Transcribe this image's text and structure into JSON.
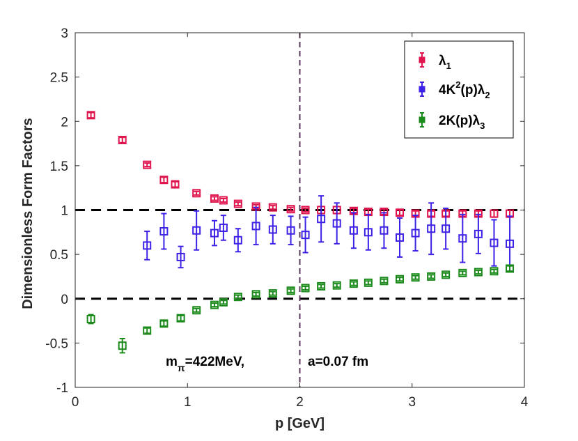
{
  "chart_data": {
    "type": "scatter",
    "xlabel": "p [GeV]",
    "ylabel": "Dimensionless Form Factors",
    "xlim": [
      0,
      4
    ],
    "ylim": [
      -1,
      3
    ],
    "x_ticks": [
      0,
      1,
      2,
      3,
      4
    ],
    "x_tick_labels": [
      "0",
      "1",
      "2",
      "3",
      "4"
    ],
    "y_ticks": [
      -1,
      -0.5,
      0,
      0.5,
      1,
      1.5,
      2,
      2.5,
      3
    ],
    "y_tick_labels": [
      "-1",
      "-0.5",
      "0",
      "0.5",
      "1",
      "1.5",
      "2",
      "2.5",
      "3"
    ],
    "grid": false,
    "legend_position": "top-right",
    "reference_lines": [
      {
        "orientation": "horizontal",
        "value": 1,
        "style": "dashed",
        "color": "#000000"
      },
      {
        "orientation": "horizontal",
        "value": 0,
        "style": "dashed",
        "color": "#000000"
      },
      {
        "orientation": "vertical",
        "value": 2,
        "style": "dashed",
        "color": "#5a3a5a"
      }
    ],
    "annotations": [
      {
        "text_main": "m",
        "text_sub": "π",
        "text_rest": "=422MeV,"
      },
      {
        "text_main": "a=0.07 fm"
      }
    ],
    "series": [
      {
        "name": "lambda1",
        "legend": {
          "main": "λ",
          "sub": "1",
          "rest": ""
        },
        "color": "#e0154d",
        "points": [
          {
            "x": 0.14,
            "y": 2.07,
            "err": 0.03
          },
          {
            "x": 0.42,
            "y": 1.79,
            "err": 0.03
          },
          {
            "x": 0.64,
            "y": 1.51,
            "err": 0.02
          },
          {
            "x": 0.79,
            "y": 1.34,
            "err": 0.03
          },
          {
            "x": 0.89,
            "y": 1.29,
            "err": 0.03
          },
          {
            "x": 1.08,
            "y": 1.19,
            "err": 0.02
          },
          {
            "x": 1.24,
            "y": 1.13,
            "err": 0.02
          },
          {
            "x": 1.32,
            "y": 1.11,
            "err": 0.02
          },
          {
            "x": 1.45,
            "y": 1.07,
            "err": 0.02
          },
          {
            "x": 1.61,
            "y": 1.04,
            "err": 0.02
          },
          {
            "x": 1.76,
            "y": 1.03,
            "err": 0.02
          },
          {
            "x": 1.92,
            "y": 1.01,
            "err": 0.02
          },
          {
            "x": 2.05,
            "y": 1.0,
            "err": 0.02
          },
          {
            "x": 2.19,
            "y": 1.0,
            "err": 0.04
          },
          {
            "x": 2.33,
            "y": 1.0,
            "err": 0.04
          },
          {
            "x": 2.48,
            "y": 0.99,
            "err": 0.03
          },
          {
            "x": 2.61,
            "y": 0.98,
            "err": 0.03
          },
          {
            "x": 2.75,
            "y": 0.98,
            "err": 0.03
          },
          {
            "x": 2.89,
            "y": 0.97,
            "err": 0.03
          },
          {
            "x": 3.03,
            "y": 0.96,
            "err": 0.03
          },
          {
            "x": 3.17,
            "y": 0.96,
            "err": 0.03
          },
          {
            "x": 3.3,
            "y": 0.96,
            "err": 0.03
          },
          {
            "x": 3.45,
            "y": 0.96,
            "err": 0.03
          },
          {
            "x": 3.59,
            "y": 0.96,
            "err": 0.03
          },
          {
            "x": 3.73,
            "y": 0.96,
            "err": 0.04
          },
          {
            "x": 3.87,
            "y": 0.96,
            "err": 0.04
          }
        ]
      },
      {
        "name": "4K2lambda2",
        "legend": {
          "main": "4K",
          "sup": "2",
          "rest": "(p)λ",
          "sub": "2"
        },
        "color": "#3b22e6",
        "points": [
          {
            "x": 0.64,
            "y": 0.6,
            "err": 0.16
          },
          {
            "x": 0.79,
            "y": 0.76,
            "err": 0.2
          },
          {
            "x": 0.94,
            "y": 0.47,
            "err": 0.12
          },
          {
            "x": 1.08,
            "y": 0.77,
            "err": 0.22
          },
          {
            "x": 1.24,
            "y": 0.74,
            "err": 0.14
          },
          {
            "x": 1.32,
            "y": 0.8,
            "err": 0.14
          },
          {
            "x": 1.45,
            "y": 0.66,
            "err": 0.13
          },
          {
            "x": 1.61,
            "y": 0.82,
            "err": 0.21
          },
          {
            "x": 1.76,
            "y": 0.78,
            "err": 0.16
          },
          {
            "x": 1.92,
            "y": 0.77,
            "err": 0.16
          },
          {
            "x": 2.05,
            "y": 0.72,
            "err": 0.2
          },
          {
            "x": 2.19,
            "y": 0.9,
            "err": 0.26
          },
          {
            "x": 2.33,
            "y": 0.85,
            "err": 0.23
          },
          {
            "x": 2.48,
            "y": 0.77,
            "err": 0.2
          },
          {
            "x": 2.61,
            "y": 0.75,
            "err": 0.2
          },
          {
            "x": 2.75,
            "y": 0.77,
            "err": 0.2
          },
          {
            "x": 2.89,
            "y": 0.69,
            "err": 0.22
          },
          {
            "x": 3.03,
            "y": 0.74,
            "err": 0.2
          },
          {
            "x": 3.17,
            "y": 0.79,
            "err": 0.29
          },
          {
            "x": 3.3,
            "y": 0.79,
            "err": 0.23
          },
          {
            "x": 3.45,
            "y": 0.68,
            "err": 0.27
          },
          {
            "x": 3.59,
            "y": 0.73,
            "err": 0.22
          },
          {
            "x": 3.73,
            "y": 0.63,
            "err": 0.26
          },
          {
            "x": 3.87,
            "y": 0.62,
            "err": 0.31
          }
        ]
      },
      {
        "name": "2Klambda3",
        "legend": {
          "main": "2K(p)λ",
          "sub": "3",
          "rest": ""
        },
        "color": "#1a8a1a",
        "points": [
          {
            "x": 0.14,
            "y": -0.23,
            "err": 0.05
          },
          {
            "x": 0.42,
            "y": -0.53,
            "err": 0.08
          },
          {
            "x": 0.64,
            "y": -0.36,
            "err": 0.03
          },
          {
            "x": 0.79,
            "y": -0.28,
            "err": 0.03
          },
          {
            "x": 0.94,
            "y": -0.22,
            "err": 0.03
          },
          {
            "x": 1.08,
            "y": -0.13,
            "err": 0.02
          },
          {
            "x": 1.24,
            "y": -0.07,
            "err": 0.02
          },
          {
            "x": 1.32,
            "y": -0.04,
            "err": 0.02
          },
          {
            "x": 1.45,
            "y": 0.02,
            "err": 0.02
          },
          {
            "x": 1.61,
            "y": 0.05,
            "err": 0.02
          },
          {
            "x": 1.76,
            "y": 0.06,
            "err": 0.02
          },
          {
            "x": 1.92,
            "y": 0.09,
            "err": 0.02
          },
          {
            "x": 2.05,
            "y": 0.12,
            "err": 0.02
          },
          {
            "x": 2.19,
            "y": 0.14,
            "err": 0.02
          },
          {
            "x": 2.33,
            "y": 0.15,
            "err": 0.02
          },
          {
            "x": 2.48,
            "y": 0.17,
            "err": 0.02
          },
          {
            "x": 2.61,
            "y": 0.18,
            "err": 0.02
          },
          {
            "x": 2.75,
            "y": 0.2,
            "err": 0.02
          },
          {
            "x": 2.89,
            "y": 0.22,
            "err": 0.02
          },
          {
            "x": 3.03,
            "y": 0.24,
            "err": 0.02
          },
          {
            "x": 3.17,
            "y": 0.25,
            "err": 0.02
          },
          {
            "x": 3.3,
            "y": 0.27,
            "err": 0.02
          },
          {
            "x": 3.45,
            "y": 0.29,
            "err": 0.02
          },
          {
            "x": 3.59,
            "y": 0.3,
            "err": 0.02
          },
          {
            "x": 3.73,
            "y": 0.31,
            "err": 0.02
          },
          {
            "x": 3.87,
            "y": 0.34,
            "err": 0.03
          }
        ]
      }
    ]
  }
}
